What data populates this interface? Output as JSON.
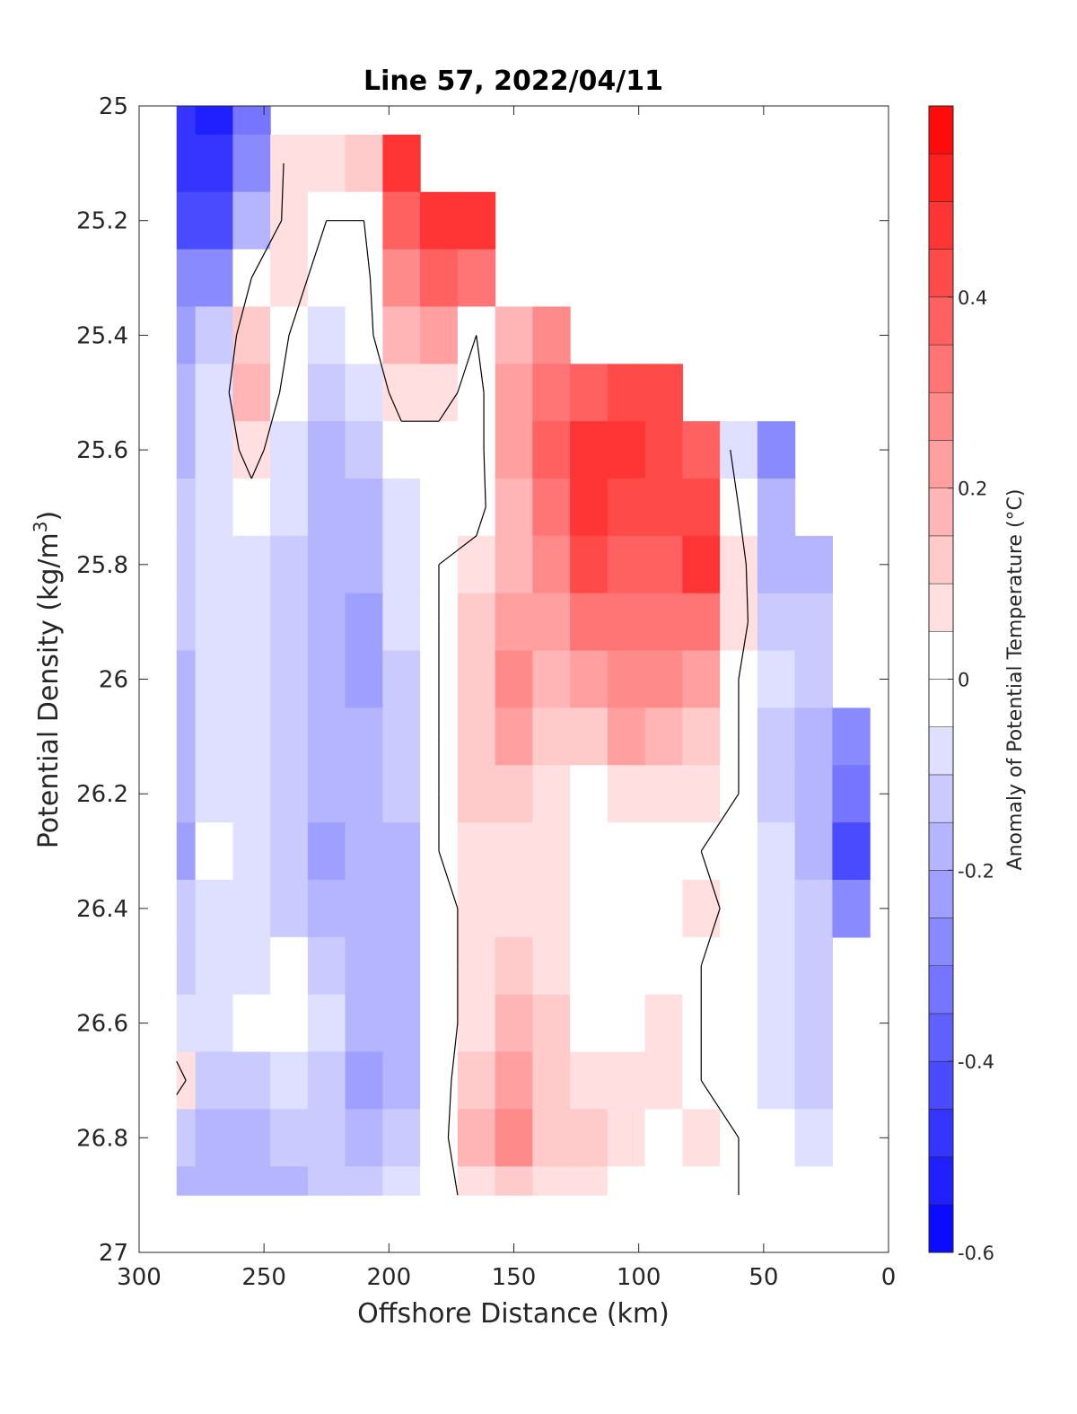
{
  "chart_data": {
    "type": "heatmap",
    "title": "Line 57, 2022/04/11",
    "xlabel": "Offshore Distance (km)",
    "ylabel_main": "Potential Density (kg/m",
    "ylabel_sup": "3",
    "ylabel_close": ")",
    "xlim": [
      300,
      0
    ],
    "ylim": [
      25,
      27
    ],
    "x_ticks": [
      300,
      250,
      200,
      150,
      100,
      50,
      0
    ],
    "y_ticks": [
      25,
      25.2,
      25.4,
      25.6,
      25.8,
      26,
      26.2,
      26.4,
      26.6,
      26.8,
      27
    ],
    "y_tick_labels": [
      "25",
      "25.2",
      "25.4",
      "25.6",
      "25.8",
      "26",
      "26.2",
      "26.4",
      "26.6",
      "26.8",
      "27"
    ],
    "colorbar": {
      "label": "Anomaly of Potential Temperature (°C)",
      "range": [
        -0.6,
        0.6
      ],
      "ticks": [
        -0.6,
        -0.4,
        -0.2,
        0,
        0.2,
        0.4
      ],
      "tick_labels": [
        "-0.6",
        "-0.4",
        "-0.2",
        "0",
        "0.2",
        "0.4"
      ],
      "levels": 24,
      "colormap": "blue-white-red"
    },
    "contour_levels": [
      0
    ],
    "grid": false,
    "x": [
      285,
      270,
      255,
      240,
      225,
      210,
      195,
      180,
      165,
      150,
      135,
      120,
      105,
      90,
      75,
      60,
      45,
      30,
      15
    ],
    "y": [
      25,
      25.1,
      25.2,
      25.3,
      25.4,
      25.5,
      25.6,
      25.7,
      25.8,
      25.9,
      26,
      26.1,
      26.2,
      26.3,
      26.4,
      26.5,
      26.6,
      26.7,
      26.8,
      26.9
    ],
    "values": [
      [
        -0.45,
        -0.5,
        -0.35,
        null,
        null,
        null,
        null,
        null,
        null,
        null,
        null,
        null,
        null,
        null,
        null,
        null,
        null,
        null,
        null
      ],
      [
        -0.45,
        -0.45,
        -0.3,
        0.05,
        0.05,
        0.1,
        0.45,
        null,
        null,
        null,
        null,
        null,
        null,
        null,
        null,
        null,
        null,
        null,
        null
      ],
      [
        -0.4,
        -0.4,
        -0.2,
        0.05,
        0.0,
        0.0,
        0.35,
        0.45,
        0.45,
        null,
        null,
        null,
        null,
        null,
        null,
        null,
        null,
        null,
        null
      ],
      [
        -0.3,
        -0.3,
        0.0,
        0.05,
        -0.05,
        -0.05,
        0.25,
        0.35,
        0.3,
        null,
        null,
        null,
        null,
        null,
        null,
        null,
        null,
        null,
        null
      ],
      [
        -0.25,
        -0.15,
        0.1,
        0.0,
        -0.1,
        -0.05,
        0.15,
        0.2,
        0.0,
        0.15,
        0.25,
        null,
        null,
        null,
        null,
        null,
        null,
        null,
        null
      ],
      [
        -0.2,
        -0.1,
        0.15,
        -0.05,
        -0.15,
        -0.1,
        0.05,
        0.05,
        -0.05,
        0.2,
        0.3,
        0.35,
        0.4,
        0.4,
        null,
        null,
        null,
        null,
        null
      ],
      [
        -0.2,
        -0.1,
        0.05,
        -0.1,
        -0.2,
        -0.15,
        -0.05,
        -0.05,
        -0.05,
        0.2,
        0.35,
        0.45,
        0.45,
        0.4,
        0.35,
        -0.1,
        -0.3,
        null,
        null
      ],
      [
        -0.15,
        -0.1,
        -0.05,
        -0.1,
        -0.2,
        -0.2,
        -0.1,
        -0.05,
        -0.05,
        0.15,
        0.3,
        0.45,
        0.4,
        0.4,
        0.4,
        0.0,
        -0.2,
        null,
        null
      ],
      [
        -0.15,
        -0.1,
        -0.1,
        -0.15,
        -0.2,
        -0.2,
        -0.1,
        0.0,
        0.05,
        0.15,
        0.25,
        0.4,
        0.35,
        0.35,
        0.45,
        0.05,
        -0.2,
        -0.2,
        null
      ],
      [
        -0.15,
        -0.1,
        -0.1,
        -0.15,
        -0.2,
        -0.25,
        -0.1,
        0.0,
        0.1,
        0.2,
        0.2,
        0.3,
        0.3,
        0.3,
        0.3,
        0.05,
        -0.15,
        -0.15,
        null
      ],
      [
        -0.2,
        -0.1,
        -0.1,
        -0.15,
        -0.2,
        -0.25,
        -0.15,
        0.0,
        0.1,
        0.25,
        0.15,
        0.2,
        0.25,
        0.25,
        0.2,
        0.0,
        -0.1,
        -0.15,
        null
      ],
      [
        -0.2,
        -0.1,
        -0.1,
        -0.15,
        -0.2,
        -0.2,
        -0.15,
        0.0,
        0.1,
        0.2,
        0.1,
        0.1,
        0.2,
        0.15,
        0.1,
        0.0,
        -0.15,
        -0.2,
        -0.3
      ],
      [
        -0.2,
        -0.1,
        -0.1,
        -0.15,
        -0.2,
        -0.2,
        -0.15,
        0.0,
        0.1,
        0.1,
        0.05,
        0.0,
        0.05,
        0.05,
        0.05,
        0.0,
        -0.15,
        -0.2,
        -0.35
      ],
      [
        -0.25,
        0.0,
        -0.1,
        -0.15,
        -0.25,
        -0.2,
        -0.2,
        0.0,
        0.05,
        0.05,
        0.05,
        0.0,
        0.0,
        0.0,
        0.0,
        -0.05,
        -0.1,
        -0.2,
        -0.4
      ],
      [
        -0.15,
        -0.1,
        -0.1,
        -0.15,
        -0.2,
        -0.2,
        -0.2,
        -0.05,
        0.05,
        0.05,
        0.05,
        0.0,
        0.0,
        0.0,
        0.05,
        -0.05,
        -0.1,
        -0.15,
        -0.3
      ],
      [
        -0.15,
        -0.1,
        -0.1,
        -0.05,
        -0.15,
        -0.2,
        -0.2,
        -0.05,
        0.05,
        0.1,
        0.05,
        0.0,
        0.0,
        0.0,
        0.0,
        -0.05,
        -0.1,
        -0.15,
        null
      ],
      [
        -0.1,
        -0.1,
        -0.05,
        -0.05,
        -0.1,
        -0.2,
        -0.2,
        -0.05,
        0.05,
        0.15,
        0.1,
        0.0,
        0.0,
        0.05,
        0.0,
        -0.05,
        -0.1,
        -0.15,
        null
      ],
      [
        0.05,
        -0.15,
        -0.15,
        -0.1,
        -0.15,
        -0.25,
        -0.2,
        -0.05,
        0.1,
        0.2,
        0.1,
        0.05,
        0.05,
        0.05,
        0.0,
        -0.05,
        -0.1,
        -0.15,
        null
      ],
      [
        -0.15,
        -0.2,
        -0.2,
        -0.15,
        -0.15,
        -0.2,
        -0.15,
        -0.05,
        0.15,
        0.25,
        0.1,
        0.1,
        0.05,
        0.0,
        0.05,
        0.0,
        -0.05,
        -0.1,
        null
      ],
      [
        -0.2,
        -0.2,
        -0.2,
        -0.2,
        -0.15,
        -0.15,
        -0.1,
        -0.05,
        0.05,
        0.1,
        0.05,
        0.05,
        0.0,
        0.0,
        0.0,
        0.0,
        -0.05,
        -0.05,
        null
      ]
    ]
  }
}
